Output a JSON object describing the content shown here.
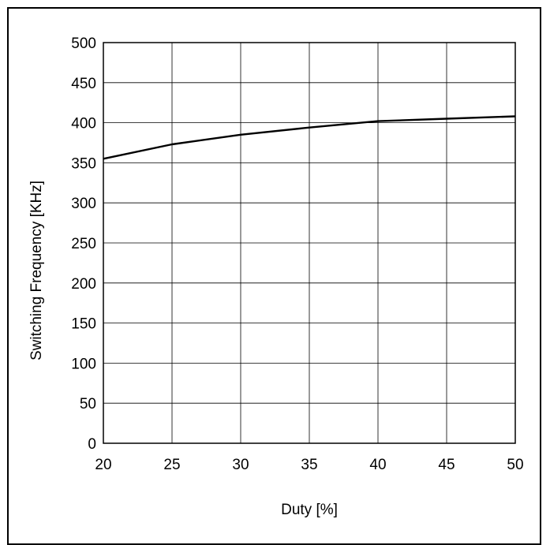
{
  "chart_data": {
    "type": "line",
    "title": "",
    "xlabel": "Duty [%]",
    "ylabel": "Switching Frequency [KHz]",
    "xlim": [
      20,
      50
    ],
    "ylim": [
      0,
      500
    ],
    "x_ticks": [
      20,
      25,
      30,
      35,
      40,
      45,
      50
    ],
    "y_ticks": [
      0,
      50,
      100,
      150,
      200,
      250,
      300,
      350,
      400,
      450,
      500
    ],
    "grid": true,
    "series": [
      {
        "x": [
          20,
          25,
          30,
          35,
          40,
          45,
          50
        ],
        "values": [
          355,
          373,
          385,
          394,
          402,
          405,
          408
        ]
      }
    ],
    "colors": {
      "line": "#000000",
      "grid": "#000000",
      "background": "#ffffff"
    }
  }
}
